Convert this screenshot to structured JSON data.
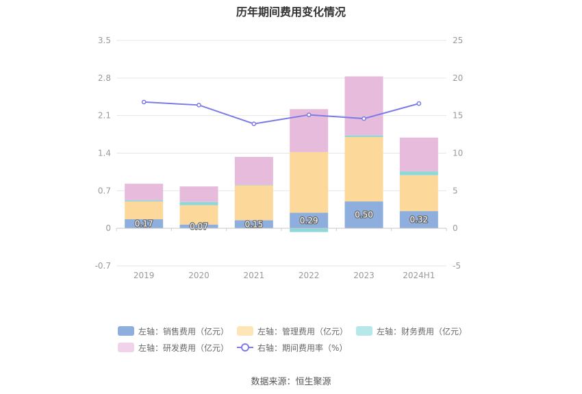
{
  "chart_data": {
    "type": "bar",
    "title": "历年期间费用变化情况",
    "categories": [
      "2019",
      "2020",
      "2021",
      "2022",
      "2023",
      "2024H1"
    ],
    "y_left": {
      "ylim": [
        -0.7,
        3.5
      ],
      "ticks": [
        "3.5",
        "2.8",
        "2.1",
        "1.4",
        "0.7",
        "0",
        "-0.7"
      ]
    },
    "y_right": {
      "ylim": [
        -5,
        25
      ],
      "ticks": [
        "25",
        "20",
        "15",
        "10",
        "5",
        "0",
        "-5"
      ]
    },
    "series": [
      {
        "name": "左轴：销售费用（亿元）",
        "axis": "left",
        "kind": "stacked-bar",
        "color": "#8eaede",
        "values": [
          0.17,
          0.07,
          0.15,
          0.29,
          0.5,
          0.32
        ],
        "labels": [
          "0.17",
          "0.07",
          "0.15",
          "0.29",
          "0.50",
          "0.32"
        ]
      },
      {
        "name": "左轴：管理费用（亿元）",
        "axis": "left",
        "kind": "stacked-bar",
        "color": "#fcd99b",
        "values": [
          0.33,
          0.36,
          0.65,
          1.13,
          1.2,
          0.67
        ]
      },
      {
        "name": "左轴：财务费用（亿元）",
        "axis": "left",
        "kind": "stacked-bar",
        "color": "#8fd8da",
        "values": [
          0.02,
          0.06,
          0.01,
          -0.07,
          0.03,
          0.07
        ]
      },
      {
        "name": "左轴：研发费用（亿元）",
        "axis": "left",
        "kind": "stacked-bar",
        "color": "#e6bbdb",
        "values": [
          0.31,
          0.29,
          0.52,
          0.8,
          1.1,
          0.63
        ]
      },
      {
        "name": "右轴：期间费用率（%）",
        "axis": "right",
        "kind": "line",
        "color": "#7b7be8",
        "values": [
          16.8,
          16.4,
          13.9,
          15.1,
          14.6,
          16.6
        ]
      }
    ]
  },
  "legend": [
    {
      "label": "左轴：销售费用（亿元）",
      "color": "#8eaede",
      "kind": "bar"
    },
    {
      "label": "左轴：管理费用（亿元）",
      "color": "#fde5b8",
      "kind": "bar"
    },
    {
      "label": "左轴：财务费用（亿元）",
      "color": "#b6e8ea",
      "kind": "bar"
    },
    {
      "label": "左轴：研发费用（亿元）",
      "color": "#f0d3e8",
      "kind": "bar"
    },
    {
      "label": "右轴：期间费用率（%）",
      "color": "#7b7be8",
      "kind": "line"
    }
  ],
  "source": "数据来源：恒生聚源"
}
